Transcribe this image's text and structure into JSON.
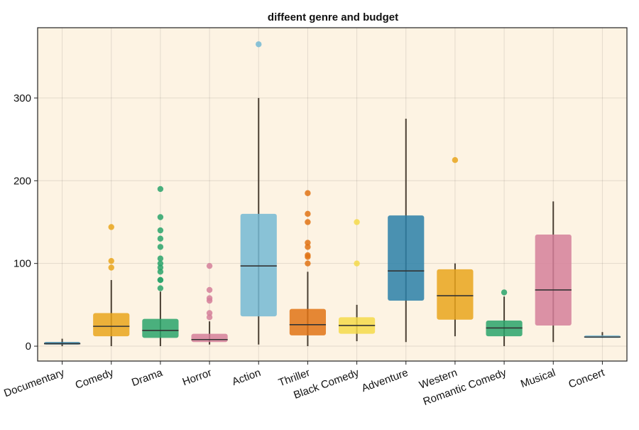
{
  "chart_data": {
    "type": "box",
    "title": "diffeent genre and budget",
    "xlabel": "",
    "ylabel": "",
    "ylim": [
      -18,
      385
    ],
    "yticks": [
      0,
      100,
      200,
      300
    ],
    "grid": true,
    "background": "#fdf3e3",
    "median_color": "#333333",
    "whisker_color": "#4a3f33",
    "categories": [
      "Documentary",
      "Comedy",
      "Drama",
      "Horror",
      "Action",
      "Thriller",
      "Black Comedy",
      "Adventure",
      "Western",
      "Romantic Comedy",
      "Musical",
      "Concert"
    ],
    "boxes": [
      {
        "category": "Documentary",
        "color": "#2a7fa8",
        "whisker_low": 0,
        "q1": 2,
        "median": 3,
        "q3": 5,
        "whisker_high": 9,
        "outliers": []
      },
      {
        "category": "Comedy",
        "color": "#e9a41c",
        "whisker_low": 0,
        "q1": 12,
        "median": 24,
        "q3": 40,
        "whisker_high": 80,
        "outliers": [
          95,
          103,
          144
        ]
      },
      {
        "category": "Drama",
        "color": "#2aa36b",
        "whisker_low": 0,
        "q1": 10,
        "median": 19,
        "q3": 33,
        "whisker_high": 66,
        "outliers": [
          70,
          80,
          80,
          90,
          95,
          100,
          106,
          120,
          130,
          140,
          156,
          190
        ]
      },
      {
        "category": "Horror",
        "color": "#d57f9a",
        "whisker_low": 2,
        "q1": 5,
        "median": 8,
        "q3": 15,
        "whisker_high": 30,
        "outliers": [
          35,
          40,
          55,
          58,
          68,
          97
        ]
      },
      {
        "category": "Action",
        "color": "#74b8d4",
        "whisker_low": 2,
        "q1": 36,
        "median": 97,
        "q3": 160,
        "whisker_high": 300,
        "outliers": [
          365
        ]
      },
      {
        "category": "Thriller",
        "color": "#e07315",
        "whisker_low": 0,
        "q1": 13,
        "median": 26,
        "q3": 45,
        "whisker_high": 90,
        "outliers": [
          100,
          108,
          110,
          120,
          125,
          150,
          160,
          185
        ]
      },
      {
        "category": "Black Comedy",
        "color": "#f5d94a",
        "whisker_low": 6,
        "q1": 15,
        "median": 25,
        "q3": 35,
        "whisker_high": 50,
        "outliers": [
          100,
          150
        ]
      },
      {
        "category": "Adventure",
        "color": "#2a7fa8",
        "whisker_low": 5,
        "q1": 55,
        "median": 91,
        "q3": 158,
        "whisker_high": 275,
        "outliers": []
      },
      {
        "category": "Western",
        "color": "#e9a41c",
        "whisker_low": 12,
        "q1": 32,
        "median": 61,
        "q3": 93,
        "whisker_high": 100,
        "outliers": [
          225
        ]
      },
      {
        "category": "Romantic Comedy",
        "color": "#2aa36b",
        "whisker_low": 0,
        "q1": 12,
        "median": 22,
        "q3": 31,
        "whisker_high": 60,
        "outliers": [
          65
        ]
      },
      {
        "category": "Musical",
        "color": "#d57f9a",
        "whisker_low": 5,
        "q1": 25,
        "median": 68,
        "q3": 135,
        "whisker_high": 175,
        "outliers": []
      },
      {
        "category": "Concert",
        "color": "#74b8d4",
        "whisker_low": 10,
        "q1": 10,
        "median": 11,
        "q3": 13,
        "whisker_high": 17,
        "outliers": []
      }
    ]
  }
}
